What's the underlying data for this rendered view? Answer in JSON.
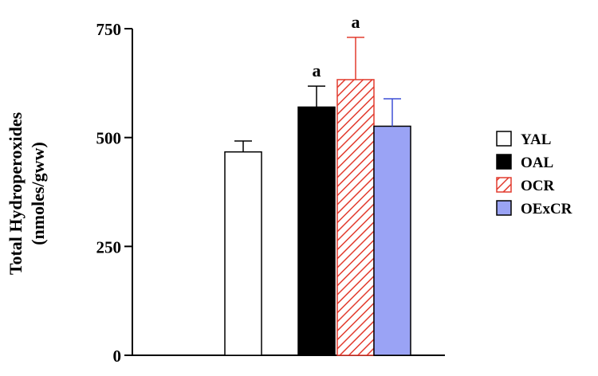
{
  "chart_data": {
    "type": "bar",
    "categories": [
      "YAL",
      "OAL",
      "OCR",
      "OExCR"
    ],
    "series": [
      {
        "name": "Total Hydroperoxides",
        "values": [
          467,
          570,
          633,
          526
        ],
        "errors": [
          25,
          48,
          97,
          63
        ]
      }
    ],
    "ylabel_line1": "Total Hydroperoxides",
    "ylabel_line2": "(nmoles/gww)",
    "ylim": [
      0,
      750
    ],
    "yticks": [
      0,
      250,
      500,
      750
    ],
    "ytick_labels": [
      "0",
      "250",
      "500",
      "750"
    ],
    "grid": false,
    "legend_position": "right",
    "legend": [
      {
        "label": "YAL",
        "fill": "#ffffff",
        "pattern": "none"
      },
      {
        "label": "OAL",
        "fill": "#000000",
        "pattern": "none"
      },
      {
        "label": "OCR",
        "fill": "#ffffff",
        "pattern": "hatch-red"
      },
      {
        "label": "OExCR",
        "fill": "#9aa3f5",
        "pattern": "none"
      }
    ],
    "bar_styles": [
      {
        "fill": "#ffffff",
        "stroke": "#000000",
        "error_color": "#000000",
        "pattern": "none"
      },
      {
        "fill": "#000000",
        "stroke": "#000000",
        "error_color": "#000000",
        "pattern": "none"
      },
      {
        "fill": "#ffffff",
        "stroke": "#e23b2e",
        "error_color": "#e23b2e",
        "pattern": "hatch-red"
      },
      {
        "fill": "#9aa3f5",
        "stroke": "#000000",
        "error_color": "#3d4fd6",
        "pattern": "none"
      }
    ],
    "annotations": [
      "",
      "a",
      "a",
      ""
    ]
  }
}
